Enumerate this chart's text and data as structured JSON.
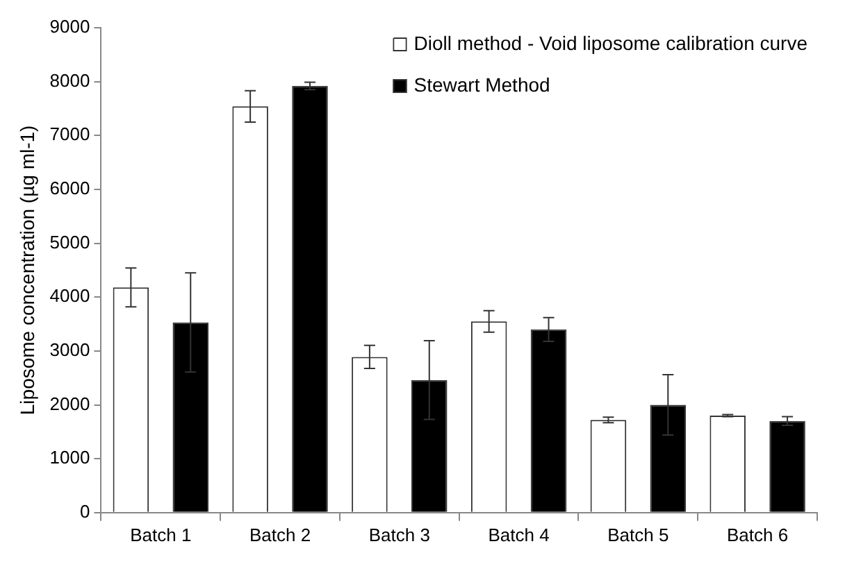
{
  "chart_data": {
    "type": "bar",
    "ylabel": "Liposome concentration (µg ml-1)",
    "categories": [
      "Batch 1",
      "Batch 2",
      "Batch 3",
      "Batch 4",
      "Batch 5",
      "Batch 6"
    ],
    "series": [
      {
        "name": "Dioll method - Void liposome calibration curve",
        "color": "#ffffff",
        "values": [
          4180,
          7540,
          2890,
          3550,
          1720,
          1800
        ],
        "errors": [
          360,
          290,
          215,
          200,
          50,
          20
        ]
      },
      {
        "name": "Stewart Method",
        "color": "#000000",
        "values": [
          3530,
          7920,
          2460,
          3400,
          2000,
          1700
        ],
        "errors": [
          920,
          70,
          730,
          220,
          560,
          80
        ]
      }
    ],
    "ylim": [
      0,
      9000
    ],
    "yticks": [
      0,
      1000,
      2000,
      3000,
      4000,
      5000,
      6000,
      7000,
      8000,
      9000
    ],
    "grid": false,
    "legend": "top right"
  }
}
